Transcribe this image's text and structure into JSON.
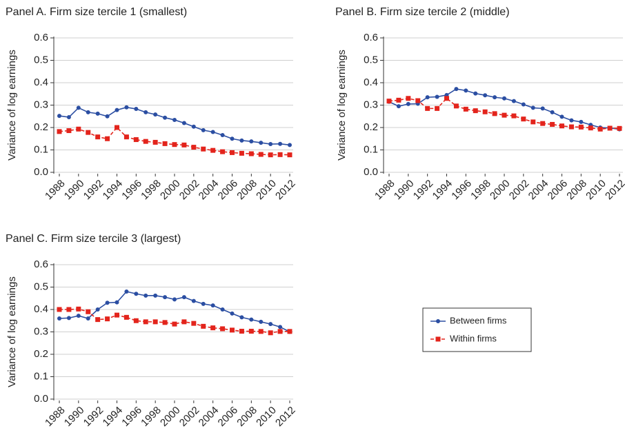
{
  "chart_data": [
    {
      "type": "line",
      "title": "Panel A. Firm size tercile 1 (smallest)",
      "y_label": "Variance of log earnings",
      "x": [
        1988,
        1989,
        1990,
        1991,
        1992,
        1993,
        1994,
        1995,
        1996,
        1997,
        1998,
        1999,
        2000,
        2001,
        2002,
        2003,
        2004,
        2005,
        2006,
        2007,
        2008,
        2009,
        2010,
        2011,
        2012
      ],
      "xlim": [
        1988,
        2012
      ],
      "xticks": [
        1988,
        1990,
        1992,
        1994,
        1996,
        1998,
        2000,
        2002,
        2004,
        2006,
        2008,
        2010,
        2012
      ],
      "ylim": [
        0,
        0.6
      ],
      "yticks": [
        {
          "value": 0,
          "label": "0.0"
        },
        0.1,
        0.2,
        0.3,
        0.4,
        0.5,
        0.6
      ],
      "grid": true,
      "series": [
        {
          "name": "Between firms",
          "color": "#2b4ea2",
          "marker": "circle",
          "values": [
            0.252,
            0.246,
            0.288,
            0.268,
            0.262,
            0.25,
            0.278,
            0.29,
            0.283,
            0.268,
            0.258,
            0.244,
            0.234,
            0.22,
            0.204,
            0.188,
            0.18,
            0.166,
            0.15,
            0.142,
            0.138,
            0.132,
            0.126,
            0.127,
            0.122
          ]
        },
        {
          "name": "Within firms",
          "color": "#e3241c",
          "marker": "square",
          "values": [
            0.182,
            0.186,
            0.193,
            0.178,
            0.158,
            0.15,
            0.2,
            0.158,
            0.146,
            0.138,
            0.134,
            0.128,
            0.124,
            0.122,
            0.112,
            0.104,
            0.098,
            0.092,
            0.088,
            0.085,
            0.083,
            0.08,
            0.078,
            0.079,
            0.078
          ]
        }
      ]
    },
    {
      "type": "line",
      "title": "Panel B. Firm size tercile 2 (middle)",
      "y_label": "Variance of log earnings",
      "x": [
        1988,
        1989,
        1990,
        1991,
        1992,
        1993,
        1994,
        1995,
        1996,
        1997,
        1998,
        1999,
        2000,
        2001,
        2002,
        2003,
        2004,
        2005,
        2006,
        2007,
        2008,
        2009,
        2010,
        2011,
        2012
      ],
      "xlim": [
        1988,
        2012
      ],
      "xticks": [
        1988,
        1990,
        1992,
        1994,
        1996,
        1998,
        2000,
        2002,
        2004,
        2006,
        2008,
        2010,
        2012
      ],
      "ylim": [
        0,
        0.6
      ],
      "yticks": [
        {
          "value": 0,
          "label": "0.0"
        },
        0.1,
        0.2,
        0.3,
        0.4,
        0.5,
        0.6
      ],
      "grid": true,
      "series": [
        {
          "name": "Between firms",
          "color": "#2b4ea2",
          "marker": "circle",
          "values": [
            0.315,
            0.295,
            0.305,
            0.306,
            0.335,
            0.337,
            0.345,
            0.372,
            0.365,
            0.352,
            0.344,
            0.335,
            0.33,
            0.318,
            0.303,
            0.288,
            0.285,
            0.268,
            0.248,
            0.232,
            0.225,
            0.212,
            0.2,
            0.198,
            0.192
          ]
        },
        {
          "name": "Within firms",
          "color": "#e3241c",
          "marker": "square",
          "values": [
            0.318,
            0.322,
            0.33,
            0.32,
            0.285,
            0.285,
            0.33,
            0.296,
            0.282,
            0.275,
            0.27,
            0.262,
            0.255,
            0.252,
            0.238,
            0.225,
            0.218,
            0.214,
            0.207,
            0.203,
            0.202,
            0.198,
            0.193,
            0.197,
            0.196
          ]
        }
      ]
    },
    {
      "type": "line",
      "title": "Panel C. Firm size tercile 3 (largest)",
      "y_label": "Variance of log earnings",
      "x": [
        1988,
        1989,
        1990,
        1991,
        1992,
        1993,
        1994,
        1995,
        1996,
        1997,
        1998,
        1999,
        2000,
        2001,
        2002,
        2003,
        2004,
        2005,
        2006,
        2007,
        2008,
        2009,
        2010,
        2011,
        2012
      ],
      "xlim": [
        1988,
        2012
      ],
      "xticks": [
        1988,
        1990,
        1992,
        1994,
        1996,
        1998,
        2000,
        2002,
        2004,
        2006,
        2008,
        2010,
        2012
      ],
      "ylim": [
        0,
        0.6
      ],
      "yticks": [
        {
          "value": 0,
          "label": "0.0"
        },
        0.1,
        0.2,
        0.3,
        0.4,
        0.5,
        0.6
      ],
      "grid": true,
      "series": [
        {
          "name": "Between firms",
          "color": "#2b4ea2",
          "marker": "circle",
          "values": [
            0.36,
            0.362,
            0.372,
            0.36,
            0.4,
            0.43,
            0.432,
            0.48,
            0.47,
            0.462,
            0.462,
            0.455,
            0.445,
            0.455,
            0.438,
            0.425,
            0.418,
            0.4,
            0.382,
            0.365,
            0.355,
            0.345,
            0.335,
            0.322,
            0.3
          ]
        },
        {
          "name": "Within firms",
          "color": "#e3241c",
          "marker": "square",
          "values": [
            0.4,
            0.4,
            0.402,
            0.39,
            0.355,
            0.358,
            0.375,
            0.365,
            0.35,
            0.345,
            0.345,
            0.342,
            0.335,
            0.345,
            0.338,
            0.325,
            0.318,
            0.314,
            0.308,
            0.303,
            0.303,
            0.302,
            0.296,
            0.302,
            0.302
          ]
        }
      ]
    }
  ]
}
